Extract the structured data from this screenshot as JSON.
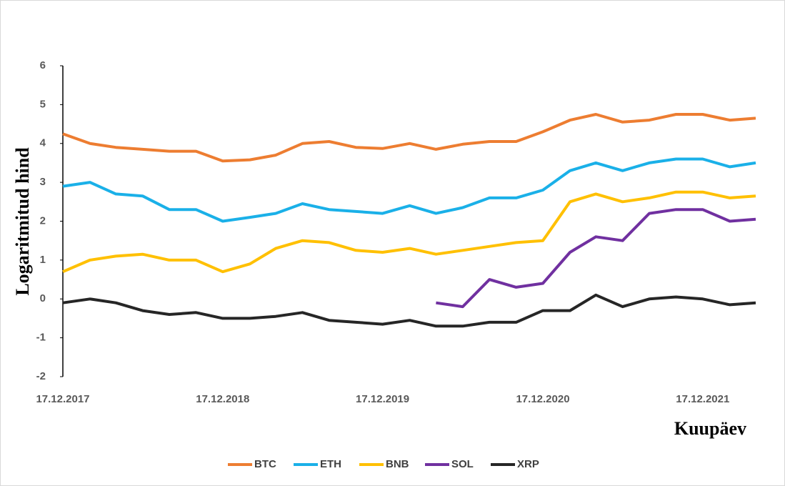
{
  "chart_data": {
    "type": "line",
    "y_label": "Logaritmitud hind",
    "x_label": "Kuupäev",
    "x": [
      "17.12.2017",
      "17.02.2018",
      "17.04.2018",
      "17.06.2018",
      "17.08.2018",
      "17.10.2018",
      "17.12.2018",
      "17.02.2019",
      "17.04.2019",
      "17.06.2019",
      "17.08.2019",
      "17.10.2019",
      "17.12.2019",
      "17.02.2020",
      "17.04.2020",
      "17.06.2020",
      "17.08.2020",
      "17.10.2020",
      "17.12.2020",
      "17.02.2021",
      "17.04.2021",
      "17.06.2021",
      "17.08.2021",
      "17.10.2021",
      "17.12.2021",
      "17.02.2022",
      "17.04.2022"
    ],
    "series": [
      {
        "name": "BTC",
        "color": "#ed7d31",
        "values": [
          4.25,
          4.0,
          3.9,
          3.85,
          3.8,
          3.8,
          3.55,
          3.58,
          3.7,
          4.0,
          4.05,
          3.9,
          3.87,
          4.0,
          3.85,
          3.98,
          4.05,
          4.05,
          4.3,
          4.6,
          4.75,
          4.55,
          4.6,
          4.75,
          4.75,
          4.6,
          4.65
        ]
      },
      {
        "name": "ETH",
        "color": "#1ab0e8",
        "values": [
          2.9,
          3.0,
          2.7,
          2.65,
          2.3,
          2.3,
          2.0,
          2.1,
          2.2,
          2.45,
          2.3,
          2.25,
          2.2,
          2.4,
          2.2,
          2.35,
          2.6,
          2.6,
          2.8,
          3.3,
          3.5,
          3.3,
          3.5,
          3.6,
          3.6,
          3.4,
          3.5
        ]
      },
      {
        "name": "BNB",
        "color": "#ffc000",
        "values": [
          0.7,
          1.0,
          1.1,
          1.15,
          1.0,
          1.0,
          0.7,
          0.9,
          1.3,
          1.5,
          1.45,
          1.25,
          1.2,
          1.3,
          1.15,
          1.25,
          1.35,
          1.45,
          1.5,
          2.5,
          2.7,
          2.5,
          2.6,
          2.75,
          2.75,
          2.6,
          2.65
        ]
      },
      {
        "name": "SOL",
        "color": "#7030a0",
        "values": [
          null,
          null,
          null,
          null,
          null,
          null,
          null,
          null,
          null,
          null,
          null,
          null,
          null,
          null,
          -0.1,
          -0.2,
          0.5,
          0.3,
          0.4,
          1.2,
          1.6,
          1.5,
          2.2,
          2.3,
          2.3,
          2.0,
          2.05
        ]
      },
      {
        "name": "XRP",
        "color": "#262626",
        "values": [
          -0.1,
          0.0,
          -0.1,
          -0.3,
          -0.4,
          -0.35,
          -0.5,
          -0.5,
          -0.45,
          -0.35,
          -0.55,
          -0.6,
          -0.65,
          -0.55,
          -0.7,
          -0.7,
          -0.6,
          -0.6,
          -0.3,
          -0.3,
          0.1,
          -0.2,
          0.0,
          0.05,
          0.0,
          -0.15,
          -0.1
        ]
      }
    ],
    "xlim": [
      "17.12.2017",
      "17.04.2022"
    ],
    "xticks": [
      "17.12.2017",
      "17.12.2018",
      "17.12.2019",
      "17.12.2020",
      "17.12.2021"
    ],
    "ylim": [
      -2,
      6
    ],
    "yticks": [
      -2,
      -1,
      0,
      1,
      2,
      3,
      4,
      5,
      6
    ],
    "legend": "bottom"
  }
}
